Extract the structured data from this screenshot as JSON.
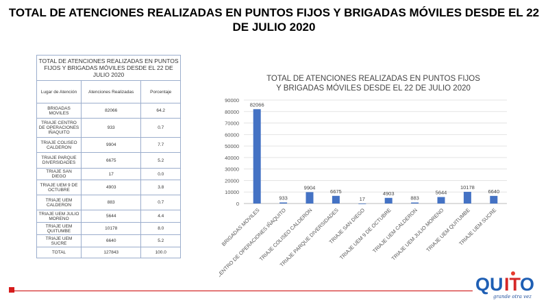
{
  "title": "TOTAL DE ATENCIONES REALIZADAS EN PUNTOS FIJOS Y BRIGADAS MÓVILES DESDE EL 22 DE JULIO 2020",
  "table": {
    "title": "TOTAL DE ATENCIONES  REALIZADAS  EN  PUNTOS FIJOS Y BRIGADAS MÓVILES DESDE EL 22 DE JULIO 2020",
    "headers": [
      "Lugar de Atención",
      "Atenciones Realizadas",
      "Porcentaje"
    ],
    "rows": [
      [
        "BRIGADAS MOVILES",
        "82066",
        "64.2"
      ],
      [
        "TRIAJE CENTRO DE OPERACIONES IÑAQUITO",
        "933",
        "0.7"
      ],
      [
        "TRIAJE COLISEO CALDERON",
        "9904",
        "7.7"
      ],
      [
        "TRIAJE PARQUE DIVERSIDADES",
        "6675",
        "5.2"
      ],
      [
        "TRIAJE SAN DIEGO",
        "17",
        "0.0"
      ],
      [
        "TRIAJE UEM 9 DE OCTUBRE",
        "4903",
        "3.8"
      ],
      [
        "TRIAJE UEM CALDERON",
        "883",
        "0.7"
      ],
      [
        "TRIAJE UEM JULIO MORENO",
        "5644",
        "4.4"
      ],
      [
        "TRIAJE UEM QUITUMBE",
        "10178",
        "8.0"
      ],
      [
        "TRIAJE UEM SUCRE",
        "6640",
        "5.2"
      ],
      [
        "TOTAL",
        "127843",
        "100.0"
      ]
    ]
  },
  "chart_data": {
    "type": "bar",
    "title": "TOTAL DE ATENCIONES REALIZADAS EN PUNTOS FIJOS Y BRIGADAS MÓVILES DESDE EL 22 DE JULIO 2020",
    "title_lines": [
      "TOTAL DE ATENCIONES REALIZADAS EN PUNTOS FIJOS",
      "Y BRIGADAS MÓVILES DESDE EL 22 DE JULIO 2020"
    ],
    "categories": [
      "BRIGADAS MOVILES",
      "TRIAJE CENTRO DE OPERACIONES IÑAQUITO",
      "TRIAJE COLISEO CALDERON",
      "TRIAJE PARQUE DIVERSIDADES",
      "TRIAJE SAN DIEGO",
      "TRIAJE UEM 9 DE OCTUBRE",
      "TRIAJE UEM CALDERON",
      "TRIAJE UEM JULIO MORENO",
      "TRIAJE UEM QUITUMBE",
      "TRIAJE UEM SUCRE"
    ],
    "values": [
      82066,
      933,
      9904,
      6675,
      17,
      4903,
      883,
      5644,
      10178,
      6640
    ],
    "ylim": [
      0,
      90000
    ],
    "yticks": [
      0,
      10000,
      20000,
      30000,
      40000,
      50000,
      60000,
      70000,
      80000,
      90000
    ],
    "grid": true,
    "bar_color": "#4472c4"
  },
  "logo": {
    "text": "QUITO",
    "tagline": "grande otra vez"
  }
}
